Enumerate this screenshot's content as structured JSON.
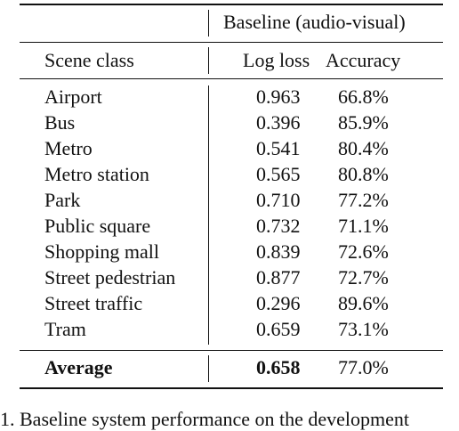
{
  "table": {
    "group_header": "Baseline (audio-visual)",
    "col_scene": "Scene class",
    "col_logloss": "Log loss",
    "col_accuracy": "Accuracy",
    "rows": [
      {
        "scene": "Airport",
        "logloss": "0.963",
        "accuracy": "66.8%"
      },
      {
        "scene": "Bus",
        "logloss": "0.396",
        "accuracy": "85.9%"
      },
      {
        "scene": "Metro",
        "logloss": "0.541",
        "accuracy": "80.4%"
      },
      {
        "scene": "Metro station",
        "logloss": "0.565",
        "accuracy": "80.8%"
      },
      {
        "scene": "Park",
        "logloss": "0.710",
        "accuracy": "77.2%"
      },
      {
        "scene": "Public square",
        "logloss": "0.732",
        "accuracy": "71.1%"
      },
      {
        "scene": "Shopping mall",
        "logloss": "0.839",
        "accuracy": "72.6%"
      },
      {
        "scene": "Street pedestrian",
        "logloss": "0.877",
        "accuracy": "72.7%"
      },
      {
        "scene": "Street traffic",
        "logloss": "0.296",
        "accuracy": "89.6%"
      },
      {
        "scene": "Tram",
        "logloss": "0.659",
        "accuracy": "73.1%"
      }
    ],
    "average": {
      "scene": "Average",
      "logloss": "0.658",
      "accuracy": "77.0%"
    }
  },
  "caption": "1. Baseline system performance on the development"
}
